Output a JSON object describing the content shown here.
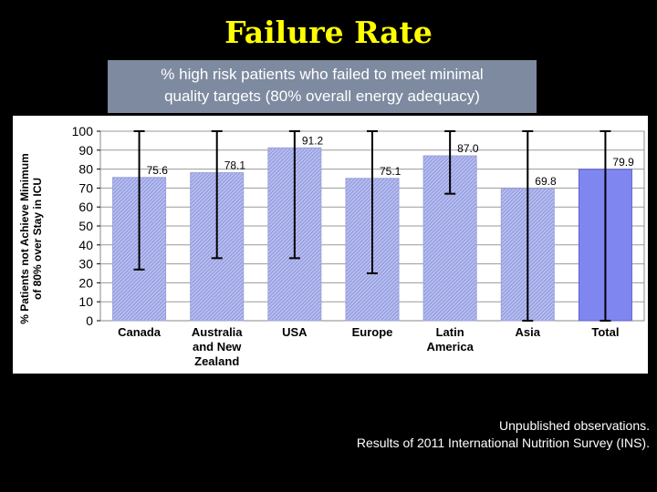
{
  "slide": {
    "title": "Failure Rate",
    "subtitle_line1": "% high risk patients who failed to meet minimal",
    "subtitle_line2": "quality targets (80% overall energy adequacy)",
    "footnote_line1": "Unpublished observations.",
    "footnote_line2": "Results of 2011 International Nutrition Survey (INS)."
  },
  "colors": {
    "title": "#ffff00",
    "subtitle_bg": "#7d8aa0",
    "bar_fill": "#b8bff2",
    "bar_hatch": "#8e96d8",
    "total_bar": "#7f86f0",
    "error_bar": "#000000"
  },
  "chart_data": {
    "type": "bar",
    "title": "",
    "xlabel": "",
    "ylabel_line1": "% Patients not Achieve Minimum",
    "ylabel_line2": "of 80% over Stay in ICU",
    "ylim": [
      0,
      100
    ],
    "yticks": [
      0,
      10,
      20,
      30,
      40,
      50,
      60,
      70,
      80,
      90,
      100
    ],
    "grid": true,
    "legend": "none",
    "categories": [
      [
        "Canada"
      ],
      [
        "Australia",
        "and New",
        "Zealand"
      ],
      [
        "USA"
      ],
      [
        "Europe"
      ],
      [
        "Latin",
        "America"
      ],
      [
        "Asia"
      ],
      [
        "Total"
      ]
    ],
    "values": [
      75.6,
      78.1,
      91.2,
      75.1,
      87.0,
      69.8,
      79.9
    ],
    "value_labels": [
      "75.6",
      "78.1",
      "91.2",
      "75.1",
      "87.0",
      "69.8",
      "79.9"
    ],
    "error_low": [
      27,
      33,
      33,
      25,
      67,
      0,
      0
    ],
    "error_high": [
      100,
      100,
      100,
      100,
      100,
      100,
      100
    ]
  }
}
